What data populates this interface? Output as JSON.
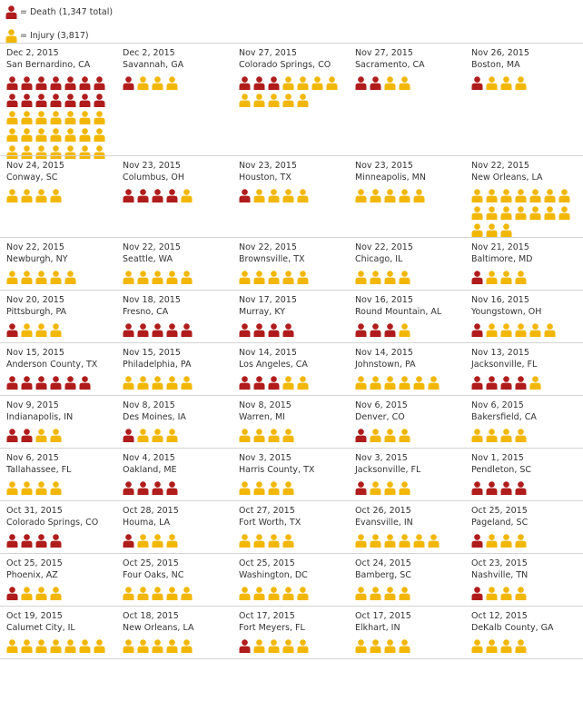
{
  "legend": {
    "death_label": "= Death (1,347 total)",
    "injury_label": "= Injury (3,817)"
  },
  "colors": {
    "death": "#b01c1c",
    "injury": "#f2b705"
  },
  "incidents": [
    {
      "date": "Dec 2, 2015",
      "place": "San Bernardino, CA",
      "deaths": 14,
      "injuries": 21
    },
    {
      "date": "Dec 2, 2015",
      "place": "Savannah, GA",
      "deaths": 1,
      "injuries": 3
    },
    {
      "date": "Nov 27, 2015",
      "place": "Colorado Springs, CO",
      "deaths": 3,
      "injuries": 9
    },
    {
      "date": "Nov 27, 2015",
      "place": "Sacramento, CA",
      "deaths": 2,
      "injuries": 2
    },
    {
      "date": "Nov 26, 2015",
      "place": "Boston, MA",
      "deaths": 1,
      "injuries": 3
    },
    {
      "date": "Nov 24, 2015",
      "place": "Conway, SC",
      "deaths": 0,
      "injuries": 4
    },
    {
      "date": "Nov 23, 2015",
      "place": "Columbus, OH",
      "deaths": 4,
      "injuries": 1
    },
    {
      "date": "Nov 23, 2015",
      "place": "Houston, TX",
      "deaths": 1,
      "injuries": 4
    },
    {
      "date": "Nov 23, 2015",
      "place": "Minneapolis, MN",
      "deaths": 0,
      "injuries": 5
    },
    {
      "date": "Nov 22, 2015",
      "place": "New Orleans, LA",
      "deaths": 0,
      "injuries": 17
    },
    {
      "date": "Nov 22, 2015",
      "place": "Newburgh, NY",
      "deaths": 0,
      "injuries": 5
    },
    {
      "date": "Nov 22, 2015",
      "place": "Seattle, WA",
      "deaths": 0,
      "injuries": 5
    },
    {
      "date": "Nov 22, 2015",
      "place": "Brownsville, TX",
      "deaths": 0,
      "injuries": 5
    },
    {
      "date": "Nov 22, 2015",
      "place": "Chicago, IL",
      "deaths": 0,
      "injuries": 4
    },
    {
      "date": "Nov 21, 2015",
      "place": "Baltimore, MD",
      "deaths": 1,
      "injuries": 3
    },
    {
      "date": "Nov 20, 2015",
      "place": "Pittsburgh, PA",
      "deaths": 1,
      "injuries": 3
    },
    {
      "date": "Nov 18, 2015",
      "place": "Fresno, CA",
      "deaths": 5,
      "injuries": 0
    },
    {
      "date": "Nov 17, 2015",
      "place": "Murray, KY",
      "deaths": 4,
      "injuries": 0
    },
    {
      "date": "Nov 16, 2015",
      "place": "Round Mountain, AL",
      "deaths": 3,
      "injuries": 1
    },
    {
      "date": "Nov 16, 2015",
      "place": "Youngstown, OH",
      "deaths": 1,
      "injuries": 5
    },
    {
      "date": "Nov 15, 2015",
      "place": "Anderson County, TX",
      "deaths": 6,
      "injuries": 0
    },
    {
      "date": "Nov 15, 2015",
      "place": "Philadelphia, PA",
      "deaths": 0,
      "injuries": 5
    },
    {
      "date": "Nov 14, 2015",
      "place": "Los Angeles, CA",
      "deaths": 3,
      "injuries": 2
    },
    {
      "date": "Nov 14, 2015",
      "place": "Johnstown, PA",
      "deaths": 0,
      "injuries": 6
    },
    {
      "date": "Nov 13, 2015",
      "place": "Jacksonville, FL",
      "deaths": 4,
      "injuries": 1
    },
    {
      "date": "Nov 9, 2015",
      "place": "Indianapolis, IN",
      "deaths": 2,
      "injuries": 2
    },
    {
      "date": "Nov 8, 2015",
      "place": "Des Moines, IA",
      "deaths": 1,
      "injuries": 3
    },
    {
      "date": "Nov 8, 2015",
      "place": "Warren, MI",
      "deaths": 0,
      "injuries": 4
    },
    {
      "date": "Nov 6, 2015",
      "place": "Denver, CO",
      "deaths": 1,
      "injuries": 3
    },
    {
      "date": "Nov 6, 2015",
      "place": "Bakersfield, CA",
      "deaths": 0,
      "injuries": 4
    },
    {
      "date": "Nov 6, 2015",
      "place": "Tallahassee, FL",
      "deaths": 0,
      "injuries": 4
    },
    {
      "date": "Nov 4, 2015",
      "place": "Oakland, ME",
      "deaths": 4,
      "injuries": 0
    },
    {
      "date": "Nov 3, 2015",
      "place": "Harris County, TX",
      "deaths": 0,
      "injuries": 4
    },
    {
      "date": "Nov 3, 2015",
      "place": "Jacksonville, FL",
      "deaths": 1,
      "injuries": 3
    },
    {
      "date": "Nov 1, 2015",
      "place": "Pendleton, SC",
      "deaths": 4,
      "injuries": 0
    },
    {
      "date": "Oct 31, 2015",
      "place": "Colorado Springs, CO",
      "deaths": 4,
      "injuries": 0
    },
    {
      "date": "Oct 28, 2015",
      "place": "Houma, LA",
      "deaths": 1,
      "injuries": 3
    },
    {
      "date": "Oct 27, 2015",
      "place": "Fort Worth, TX",
      "deaths": 0,
      "injuries": 4
    },
    {
      "date": "Oct 26, 2015",
      "place": "Evansville, IN",
      "deaths": 0,
      "injuries": 6
    },
    {
      "date": "Oct 25, 2015",
      "place": "Pageland, SC",
      "deaths": 1,
      "injuries": 3
    },
    {
      "date": "Oct 25, 2015",
      "place": "Phoenix, AZ",
      "deaths": 1,
      "injuries": 3
    },
    {
      "date": "Oct 25, 2015",
      "place": "Four Oaks, NC",
      "deaths": 0,
      "injuries": 5
    },
    {
      "date": "Oct 25, 2015",
      "place": "Washington, DC",
      "deaths": 0,
      "injuries": 5
    },
    {
      "date": "Oct 24, 2015",
      "place": "Bamberg, SC",
      "deaths": 0,
      "injuries": 4
    },
    {
      "date": "Oct 23, 2015",
      "place": "Nashville, TN",
      "deaths": 1,
      "injuries": 3
    },
    {
      "date": "Oct 19, 2015",
      "place": "Calumet City, IL",
      "deaths": 0,
      "injuries": 7
    },
    {
      "date": "Oct 18, 2015",
      "place": "New Orleans, LA",
      "deaths": 0,
      "injuries": 5
    },
    {
      "date": "Oct 17, 2015",
      "place": "Fort Meyers, FL",
      "deaths": 1,
      "injuries": 4
    },
    {
      "date": "Oct 17, 2015",
      "place": "Elkhart, IN",
      "deaths": 0,
      "injuries": 4
    },
    {
      "date": "Oct 12, 2015",
      "place": "DeKalb County, GA",
      "deaths": 0,
      "injuries": 4
    }
  ],
  "chart_data": {
    "type": "table",
    "title": "",
    "series": [
      {
        "name": "Death",
        "values": [
          14,
          1,
          3,
          2,
          1,
          0,
          4,
          1,
          0,
          0,
          0,
          0,
          0,
          0,
          1,
          1,
          5,
          4,
          3,
          1,
          6,
          0,
          3,
          0,
          4,
          2,
          1,
          0,
          1,
          0,
          0,
          4,
          0,
          1,
          4,
          4,
          1,
          0,
          0,
          1,
          1,
          0,
          0,
          0,
          1,
          0,
          0,
          1,
          0,
          0
        ]
      },
      {
        "name": "Injury",
        "values": [
          21,
          3,
          9,
          2,
          3,
          4,
          1,
          4,
          5,
          17,
          5,
          5,
          5,
          4,
          3,
          3,
          0,
          0,
          1,
          5,
          0,
          5,
          2,
          6,
          1,
          2,
          3,
          4,
          3,
          4,
          4,
          0,
          4,
          3,
          0,
          0,
          3,
          4,
          6,
          3,
          3,
          5,
          5,
          4,
          3,
          7,
          5,
          4,
          4,
          4
        ]
      }
    ]
  }
}
